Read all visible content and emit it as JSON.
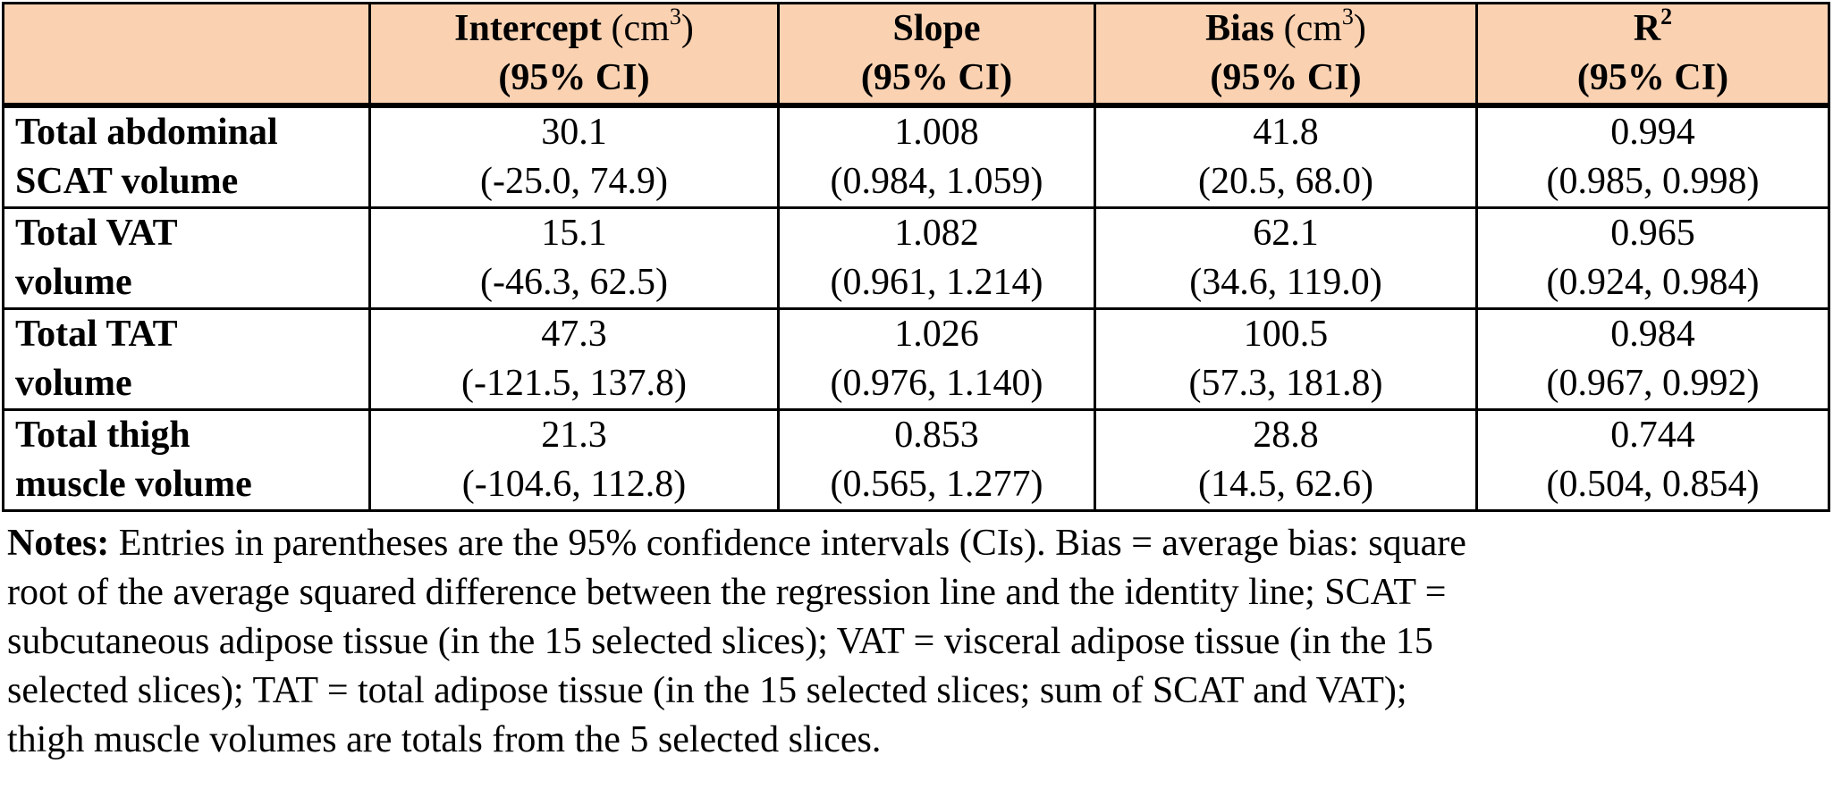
{
  "page": {
    "header_bg": "#fad2b2",
    "border_color": "#000000"
  },
  "table": {
    "header": {
      "corner": "",
      "columns": [
        {
          "name": "Intercept",
          "unit_open": " (cm",
          "sup": "3",
          "unit_close": ")",
          "line2": "(95% CI)"
        },
        {
          "name": "Slope",
          "unit_open": "",
          "sup": "",
          "unit_close": "",
          "line2": "(95% CI)"
        },
        {
          "name": "Bias",
          "unit_open": " (cm",
          "sup": "3",
          "unit_close": ")",
          "line2": "(95% CI)"
        },
        {
          "name": "R",
          "unit_open": "",
          "sup": "2",
          "unit_close": "",
          "line2": "(95% CI)"
        }
      ]
    },
    "rows": [
      {
        "label_line1": "Total abdominal",
        "label_line2": "SCAT volume",
        "cells": [
          {
            "value": "30.1",
            "ci": "(-25.0, 74.9)"
          },
          {
            "value": "1.008",
            "ci": "(0.984, 1.059)"
          },
          {
            "value": "41.8",
            "ci": "(20.5, 68.0)"
          },
          {
            "value": "0.994",
            "ci": "(0.985, 0.998)"
          }
        ]
      },
      {
        "label_line1": "Total VAT",
        "label_line2": "volume",
        "cells": [
          {
            "value": "15.1",
            "ci": "(-46.3, 62.5)"
          },
          {
            "value": "1.082",
            "ci": "(0.961, 1.214)"
          },
          {
            "value": "62.1",
            "ci": "(34.6, 119.0)"
          },
          {
            "value": "0.965",
            "ci": "(0.924, 0.984)"
          }
        ]
      },
      {
        "label_line1": "Total TAT",
        "label_line2": "volume",
        "cells": [
          {
            "value": "47.3",
            "ci": "(-121.5, 137.8)"
          },
          {
            "value": "1.026",
            "ci": "(0.976, 1.140)"
          },
          {
            "value": "100.5",
            "ci": "(57.3, 181.8)"
          },
          {
            "value": "0.984",
            "ci": "(0.967, 0.992)"
          }
        ]
      },
      {
        "label_line1": "Total thigh",
        "label_line2": "muscle volume",
        "cells": [
          {
            "value": "21.3",
            "ci": "(-104.6, 112.8)"
          },
          {
            "value": "0.853",
            "ci": "(0.565, 1.277)"
          },
          {
            "value": "28.8",
            "ci": "(14.5, 62.6)"
          },
          {
            "value": "0.744",
            "ci": "(0.504, 0.854)"
          }
        ]
      }
    ]
  },
  "notes": {
    "label": "Notes:",
    "lines": [
      " Entries in parentheses are the 95% confidence intervals (CIs). Bias = average bias: square",
      "root of the average squared difference between the regression line and the identity line; SCAT =",
      "subcutaneous adipose tissue (in the 15 selected slices); VAT = visceral adipose tissue (in the 15",
      "selected slices); TAT = total adipose tissue (in the 15 selected slices; sum of SCAT and VAT);",
      "thigh muscle volumes are totals from the 5 selected slices."
    ]
  }
}
